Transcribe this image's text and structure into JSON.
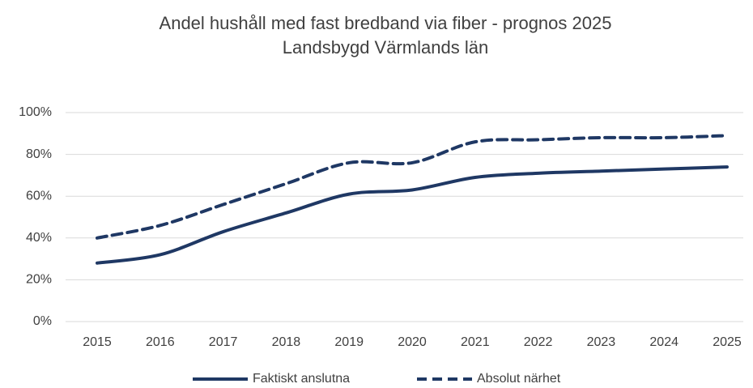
{
  "chart_data": {
    "type": "line",
    "title": "Andel hushåll med fast bredband via fiber - prognos 2025",
    "subtitle": "Landsbygd Värmlands län",
    "categories": [
      "2015",
      "2016",
      "2017",
      "2018",
      "2019",
      "2020",
      "2021",
      "2022",
      "2023",
      "2024",
      "2025"
    ],
    "series": [
      {
        "name": "Faktiskt anslutna",
        "color": "#1f3864",
        "dash": false,
        "values": [
          28,
          32,
          43,
          52,
          61,
          63,
          69,
          71,
          72,
          73,
          74
        ]
      },
      {
        "name": "Absolut närhet",
        "color": "#1f3864",
        "dash": true,
        "values": [
          40,
          46,
          56,
          66,
          76,
          76,
          86,
          87,
          88,
          88,
          89
        ]
      }
    ],
    "ylim": [
      0,
      100
    ],
    "yticks": [
      {
        "value": 0,
        "label": "0%"
      },
      {
        "value": 20,
        "label": "20%"
      },
      {
        "value": 40,
        "label": "40%"
      },
      {
        "value": 60,
        "label": "60%"
      },
      {
        "value": 80,
        "label": "80%"
      },
      {
        "value": 100,
        "label": "100%"
      }
    ],
    "grid": true,
    "legend": "bottom"
  }
}
